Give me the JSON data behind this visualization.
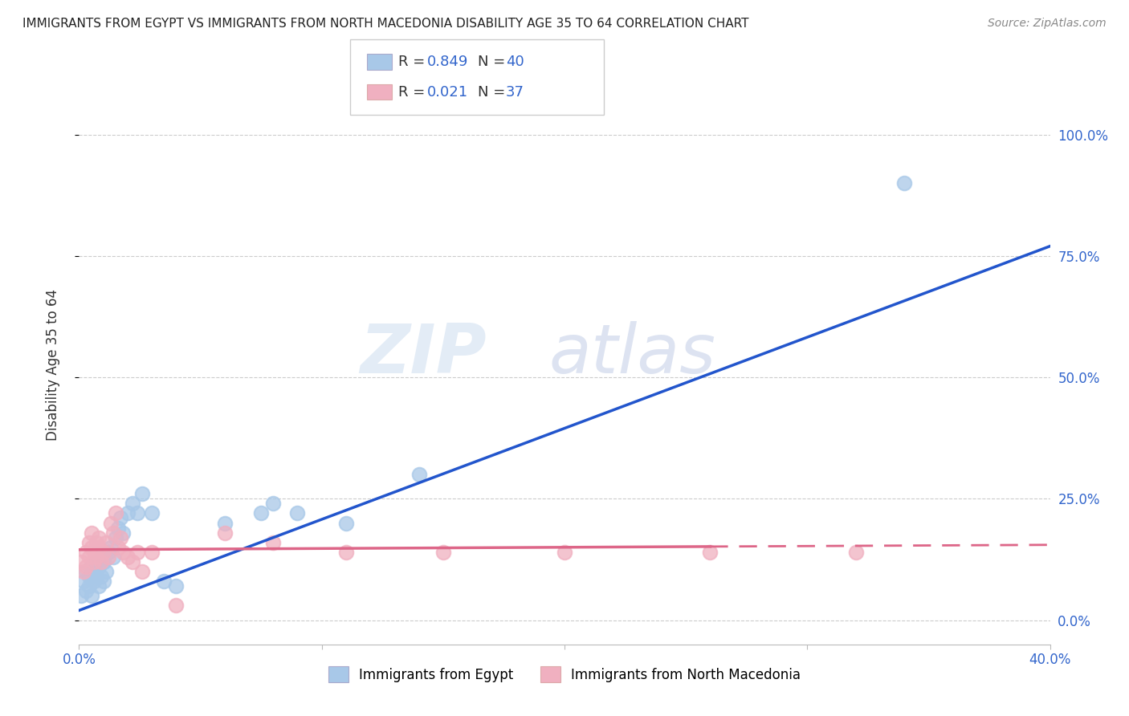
{
  "title": "IMMIGRANTS FROM EGYPT VS IMMIGRANTS FROM NORTH MACEDONIA DISABILITY AGE 35 TO 64 CORRELATION CHART",
  "source": "Source: ZipAtlas.com",
  "ylabel": "Disability Age 35 to 64",
  "xlim": [
    0.0,
    0.4
  ],
  "ylim": [
    -0.05,
    1.1
  ],
  "xticks": [
    0.0,
    0.1,
    0.2,
    0.3,
    0.4
  ],
  "xtick_labels": [
    "0.0%",
    "",
    "",
    "",
    "40.0%"
  ],
  "ytick_labels_right": [
    "100.0%",
    "75.0%",
    "50.0%",
    "25.0%",
    "0.0%"
  ],
  "yticks_right": [
    1.0,
    0.75,
    0.5,
    0.25,
    0.0
  ],
  "egypt_R": 0.849,
  "egypt_N": 40,
  "macedonia_R": 0.021,
  "macedonia_N": 37,
  "egypt_color": "#a8c8e8",
  "egypt_line_color": "#2255cc",
  "macedonia_color": "#f0b0c0",
  "macedonia_line_color": "#dd6688",
  "watermark_zip": "ZIP",
  "watermark_atlas": "atlas",
  "background_color": "#ffffff",
  "grid_color": "#cccccc",
  "egypt_scatter_x": [
    0.001,
    0.002,
    0.003,
    0.003,
    0.004,
    0.004,
    0.005,
    0.005,
    0.006,
    0.006,
    0.007,
    0.007,
    0.008,
    0.008,
    0.009,
    0.009,
    0.01,
    0.01,
    0.011,
    0.012,
    0.013,
    0.014,
    0.015,
    0.016,
    0.017,
    0.018,
    0.02,
    0.022,
    0.024,
    0.026,
    0.03,
    0.035,
    0.04,
    0.06,
    0.075,
    0.08,
    0.09,
    0.11,
    0.14,
    0.34
  ],
  "egypt_scatter_y": [
    0.05,
    0.08,
    0.06,
    0.1,
    0.07,
    0.09,
    0.05,
    0.11,
    0.08,
    0.1,
    0.09,
    0.12,
    0.07,
    0.11,
    0.09,
    0.13,
    0.08,
    0.12,
    0.1,
    0.14,
    0.15,
    0.13,
    0.17,
    0.19,
    0.21,
    0.18,
    0.22,
    0.24,
    0.22,
    0.26,
    0.22,
    0.08,
    0.07,
    0.2,
    0.22,
    0.24,
    0.22,
    0.2,
    0.3,
    0.9
  ],
  "egypt_line_x": [
    0.0,
    0.4
  ],
  "egypt_line_y": [
    0.02,
    0.77
  ],
  "macedonia_scatter_x": [
    0.001,
    0.002,
    0.003,
    0.003,
    0.004,
    0.004,
    0.005,
    0.005,
    0.006,
    0.006,
    0.007,
    0.007,
    0.008,
    0.008,
    0.009,
    0.01,
    0.011,
    0.012,
    0.013,
    0.014,
    0.015,
    0.016,
    0.017,
    0.018,
    0.02,
    0.022,
    0.024,
    0.026,
    0.03,
    0.04,
    0.06,
    0.08,
    0.11,
    0.15,
    0.2,
    0.26,
    0.32
  ],
  "macedonia_scatter_y": [
    0.12,
    0.1,
    0.14,
    0.11,
    0.16,
    0.13,
    0.18,
    0.15,
    0.14,
    0.12,
    0.16,
    0.13,
    0.17,
    0.15,
    0.12,
    0.14,
    0.16,
    0.13,
    0.2,
    0.18,
    0.22,
    0.15,
    0.17,
    0.14,
    0.13,
    0.12,
    0.14,
    0.1,
    0.14,
    0.03,
    0.18,
    0.16,
    0.14,
    0.14,
    0.14,
    0.14,
    0.14
  ],
  "macedonia_line_x": [
    0.0,
    0.4
  ],
  "macedonia_line_y": [
    0.145,
    0.155
  ]
}
